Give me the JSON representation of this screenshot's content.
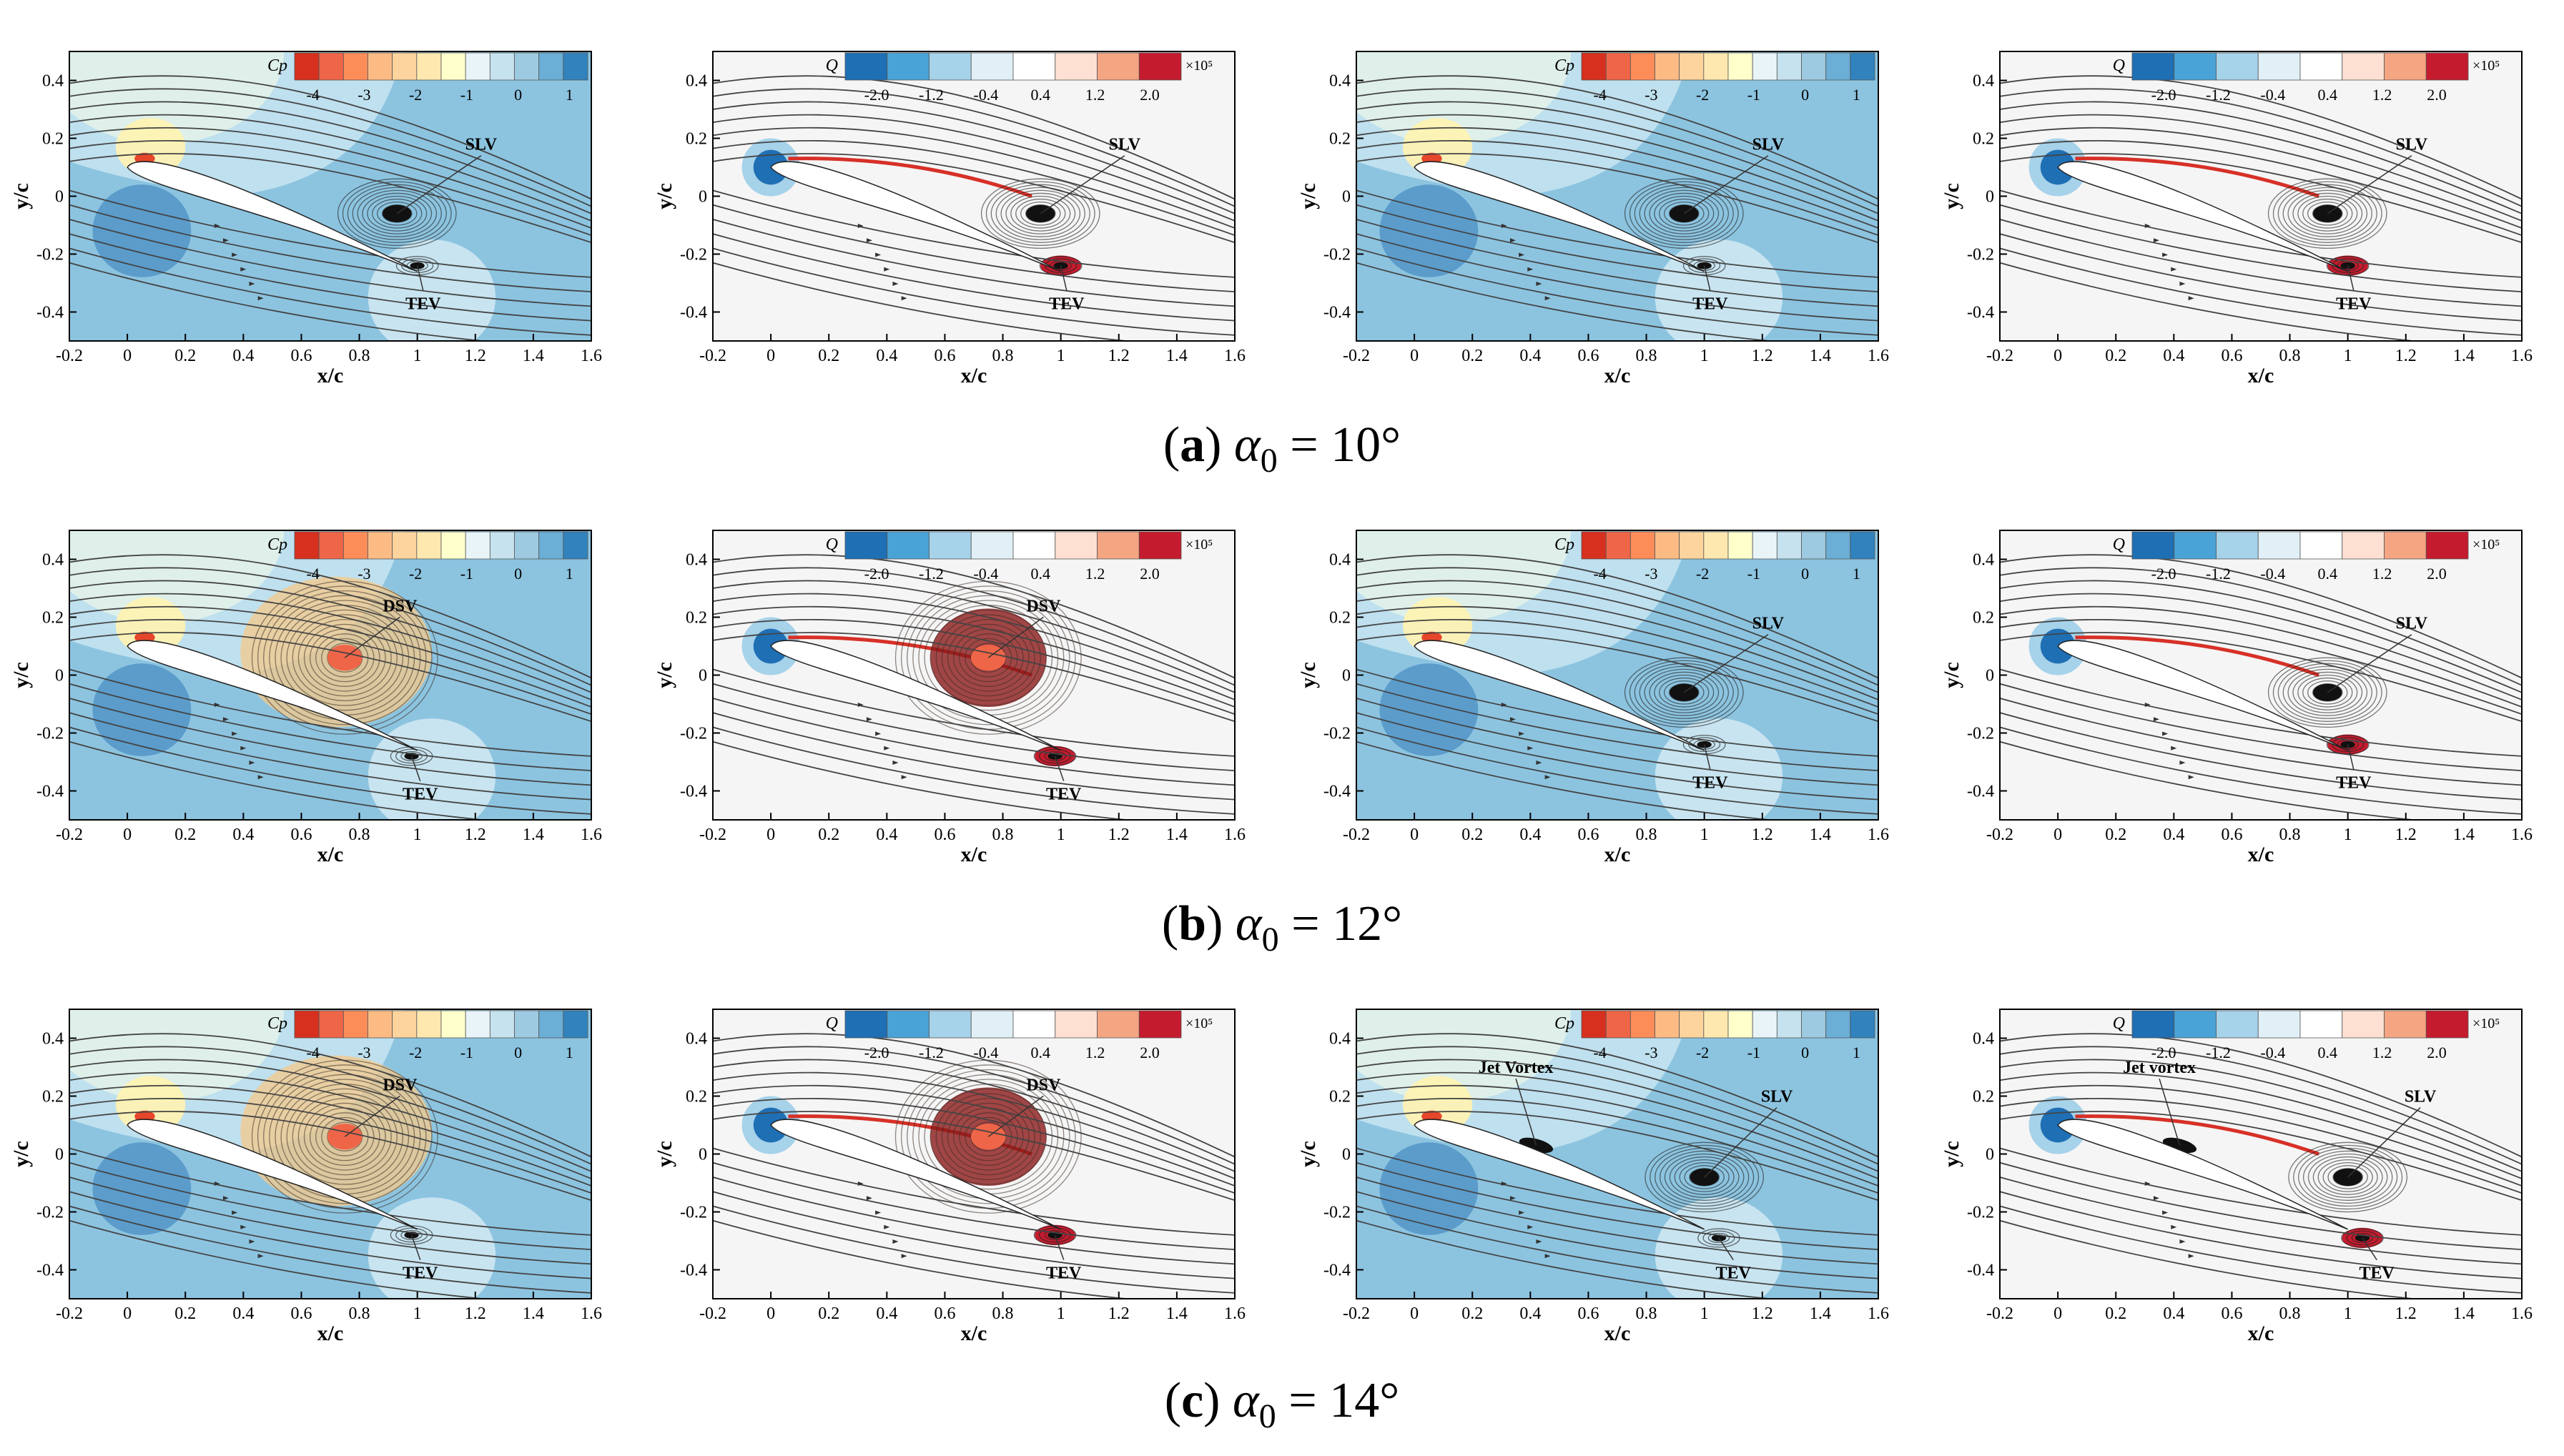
{
  "figure": {
    "rows": [
      {
        "caption": {
          "letter": "a",
          "alpha": "α",
          "sub": "0",
          "eq": " = 10°"
        },
        "panels": [
          {
            "variable": "Cp",
            "flow": "attached",
            "labels": [
              {
                "text": "SLV",
                "vortex": "slv"
              },
              {
                "text": "TEV",
                "vortex": "tev"
              }
            ]
          },
          {
            "variable": "Q",
            "flow": "attached",
            "labels": [
              {
                "text": "SLV",
                "vortex": "slv"
              },
              {
                "text": "TEV",
                "vortex": "tev"
              }
            ]
          },
          {
            "variable": "Cp",
            "flow": "attached",
            "labels": [
              {
                "text": "SLV",
                "vortex": "slv"
              },
              {
                "text": "TEV",
                "vortex": "tev"
              }
            ]
          },
          {
            "variable": "Q",
            "flow": "attached",
            "labels": [
              {
                "text": "SLV",
                "vortex": "slv"
              },
              {
                "text": "TEV",
                "vortex": "tev"
              }
            ]
          }
        ]
      },
      {
        "caption": {
          "letter": "b",
          "alpha": "α",
          "sub": "0",
          "eq": " = 12°"
        },
        "panels": [
          {
            "variable": "Cp",
            "flow": "stall",
            "labels": [
              {
                "text": "DSV",
                "vortex": "dsv"
              },
              {
                "text": "TEV",
                "vortex": "tev"
              }
            ]
          },
          {
            "variable": "Q",
            "flow": "stall",
            "labels": [
              {
                "text": "DSV",
                "vortex": "dsv"
              },
              {
                "text": "TEV",
                "vortex": "tev"
              }
            ]
          },
          {
            "variable": "Cp",
            "flow": "attached",
            "labels": [
              {
                "text": "SLV",
                "vortex": "slv"
              },
              {
                "text": "TEV",
                "vortex": "tev"
              }
            ]
          },
          {
            "variable": "Q",
            "flow": "attached",
            "labels": [
              {
                "text": "SLV",
                "vortex": "slv"
              },
              {
                "text": "TEV",
                "vortex": "tev"
              }
            ]
          }
        ]
      },
      {
        "caption": {
          "letter": "c",
          "alpha": "α",
          "sub": "0",
          "eq": " = 14°"
        },
        "panels": [
          {
            "variable": "Cp",
            "flow": "stall",
            "labels": [
              {
                "text": "DSV",
                "vortex": "dsv"
              },
              {
                "text": "TEV",
                "vortex": "tev"
              }
            ]
          },
          {
            "variable": "Q",
            "flow": "stall",
            "labels": [
              {
                "text": "DSV",
                "vortex": "dsv"
              },
              {
                "text": "TEV",
                "vortex": "tev"
              }
            ]
          },
          {
            "variable": "Cp",
            "flow": "jet",
            "labels": [
              {
                "text": "Jet Vortex",
                "vortex": "jet"
              },
              {
                "text": "SLV",
                "vortex": "slv"
              },
              {
                "text": "TEV",
                "vortex": "tev"
              }
            ]
          },
          {
            "variable": "Q",
            "flow": "jet",
            "labels": [
              {
                "text": "Jet vortex",
                "vortex": "jet"
              },
              {
                "text": "SLV",
                "vortex": "slv"
              },
              {
                "text": "TEV",
                "vortex": "tev"
              }
            ]
          }
        ]
      }
    ]
  },
  "chart_data": {
    "type": "contour",
    "title": "",
    "xlabel": "x/c",
    "ylabel": "y/c",
    "xlim": [
      -0.2,
      1.6
    ],
    "ylim": [
      -0.5,
      0.5
    ],
    "x_ticks": [
      "-0.2",
      "0",
      "0.2",
      "0.4",
      "0.6",
      "0.8",
      "1",
      "1.2",
      "1.4",
      "1.6"
    ],
    "y_ticks": [
      "-0.4",
      "-0.2",
      "0",
      "0.2",
      "0.4"
    ],
    "colorbars": {
      "Cp": {
        "label": "Cp",
        "levels": 12,
        "ticks": [
          "-4",
          "-3",
          "-2",
          "-1",
          "0",
          "1"
        ],
        "colors": [
          "#d7301f",
          "#ef6548",
          "#fc8d59",
          "#fdbb84",
          "#fdd49e",
          "#fee8b0",
          "#ffffcc",
          "#e8f4f8",
          "#c6e2ee",
          "#9ecae1",
          "#6baed6",
          "#3182bd"
        ]
      },
      "Q": {
        "label": "Q",
        "levels": 8,
        "ticks": [
          "-2.0",
          "-1.2",
          "-0.4",
          "0.4",
          "1.2",
          "2.0"
        ],
        "scale": "×10⁵",
        "colors": [
          "#1f6fb4",
          "#4aa3d6",
          "#a6d2ea",
          "#e1eff7",
          "#ffffff",
          "#fde0d2",
          "#f4a582",
          "#c51b2e"
        ]
      }
    }
  }
}
